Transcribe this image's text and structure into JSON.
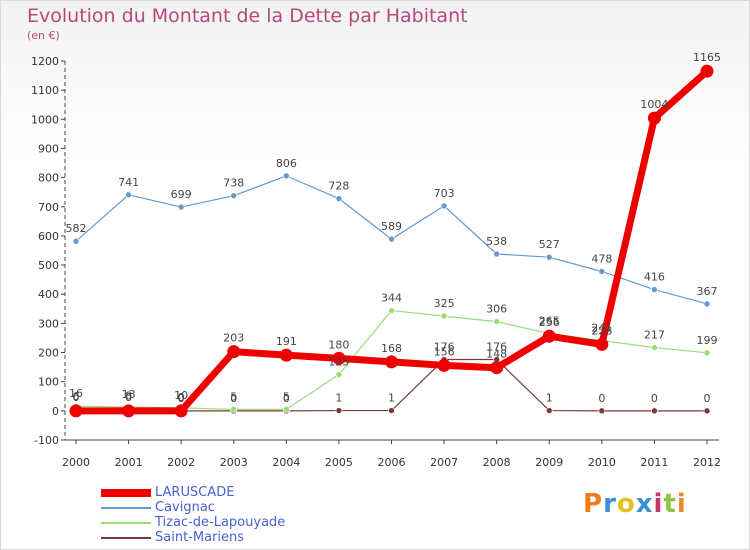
{
  "chart_data": {
    "type": "line",
    "title": "Evolution du Montant de la Dette par Habitant",
    "subtitle": "(en €)",
    "x": [
      "2000",
      "2001",
      "2002",
      "2003",
      "2004",
      "2005",
      "2006",
      "2007",
      "2008",
      "2009",
      "2010",
      "2011",
      "2012"
    ],
    "ylim": [
      -100,
      1200
    ],
    "yticks": [
      -100,
      0,
      100,
      200,
      300,
      400,
      500,
      600,
      700,
      800,
      900,
      1000,
      1100,
      1200
    ],
    "ytick_labels": [
      "-100",
      "0",
      "100",
      "200",
      "300",
      "400",
      "500",
      "600",
      "700",
      "800",
      "900",
      "1000",
      "1100",
      "1200"
    ],
    "grid": false,
    "legend_position": "bottom-left",
    "series": [
      {
        "name": "LARUSCADE",
        "color": "#ee0000",
        "values": [
          0,
          0,
          0,
          203,
          191,
          180,
          168,
          156,
          148,
          256,
          228,
          1004,
          1165
        ],
        "labels": [
          "0",
          "0",
          "0",
          "203",
          "191",
          "180",
          "168",
          "156",
          "148",
          "256",
          "228",
          "1004",
          "1165"
        ]
      },
      {
        "name": "Cavignac",
        "color": "#6699cc",
        "values": [
          582,
          741,
          699,
          738,
          806,
          728,
          589,
          703,
          538,
          527,
          478,
          416,
          367
        ],
        "labels": [
          "582",
          "741",
          "699",
          "738",
          "806",
          "728",
          "589",
          "703",
          "538",
          "527",
          "478",
          "416",
          "367"
        ]
      },
      {
        "name": "Tizac-de-Lapouyade",
        "color": "#99dd77",
        "values": [
          16,
          13,
          10,
          5,
          5,
          125,
          344,
          325,
          306,
          265,
          241,
          217,
          199
        ],
        "labels": [
          "16",
          "13",
          "10",
          "5",
          "5",
          "125",
          "344",
          "325",
          "306",
          "265",
          "241",
          "217",
          "199"
        ]
      },
      {
        "name": "Saint-Mariens",
        "color": "#7a3a3a",
        "values": [
          6,
          8,
          0,
          0,
          0,
          1,
          1,
          176,
          176,
          1,
          0,
          0,
          0
        ],
        "labels": [
          "6",
          "8",
          "0",
          "0",
          "0",
          "1",
          "1",
          "176",
          "176",
          "1",
          "0",
          "0",
          "0"
        ]
      }
    ]
  },
  "logo": {
    "text": "Proxiti",
    "letter_colors": [
      "#ee7d1a",
      "#3a8fd6",
      "#e6c21f",
      "#3a8fd6",
      "#cc3366",
      "#8cc63f",
      "#f08a24"
    ]
  }
}
